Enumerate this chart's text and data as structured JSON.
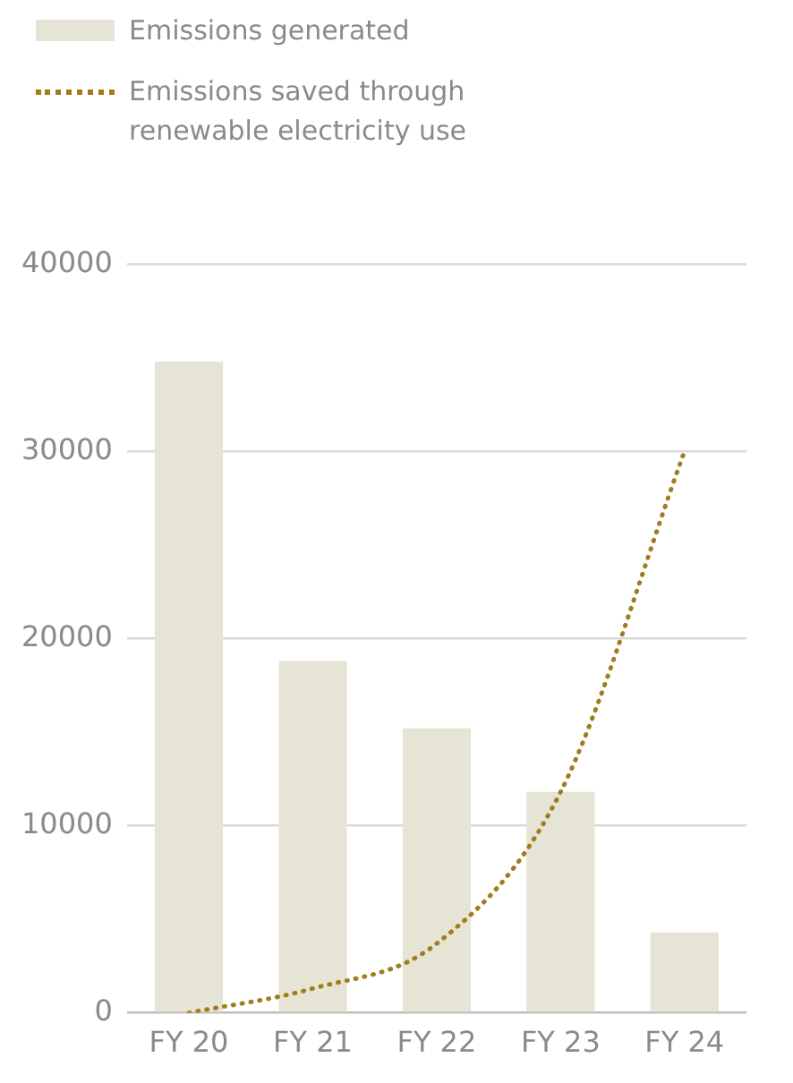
{
  "chart_data": {
    "type": "bar",
    "categories": [
      "FY 20",
      "FY 21",
      "FY 22",
      "FY 23",
      "FY 24"
    ],
    "series": [
      {
        "name": "Emissions generated",
        "color": "#e6e4d4",
        "values": [
          34800,
          18800,
          15200,
          11800,
          4300
        ]
      },
      {
        "name": "Emissions saved through renewable electricity use",
        "type": "line",
        "color": "#a07d1c",
        "line_style": "dotted",
        "marker": "none",
        "values": [
          0,
          1300,
          3700,
          11800,
          30000
        ]
      }
    ],
    "ylim": [
      0,
      40000
    ],
    "yticks": [
      0,
      10000,
      20000,
      30000,
      40000
    ],
    "grid": "y",
    "legend": "top left"
  }
}
